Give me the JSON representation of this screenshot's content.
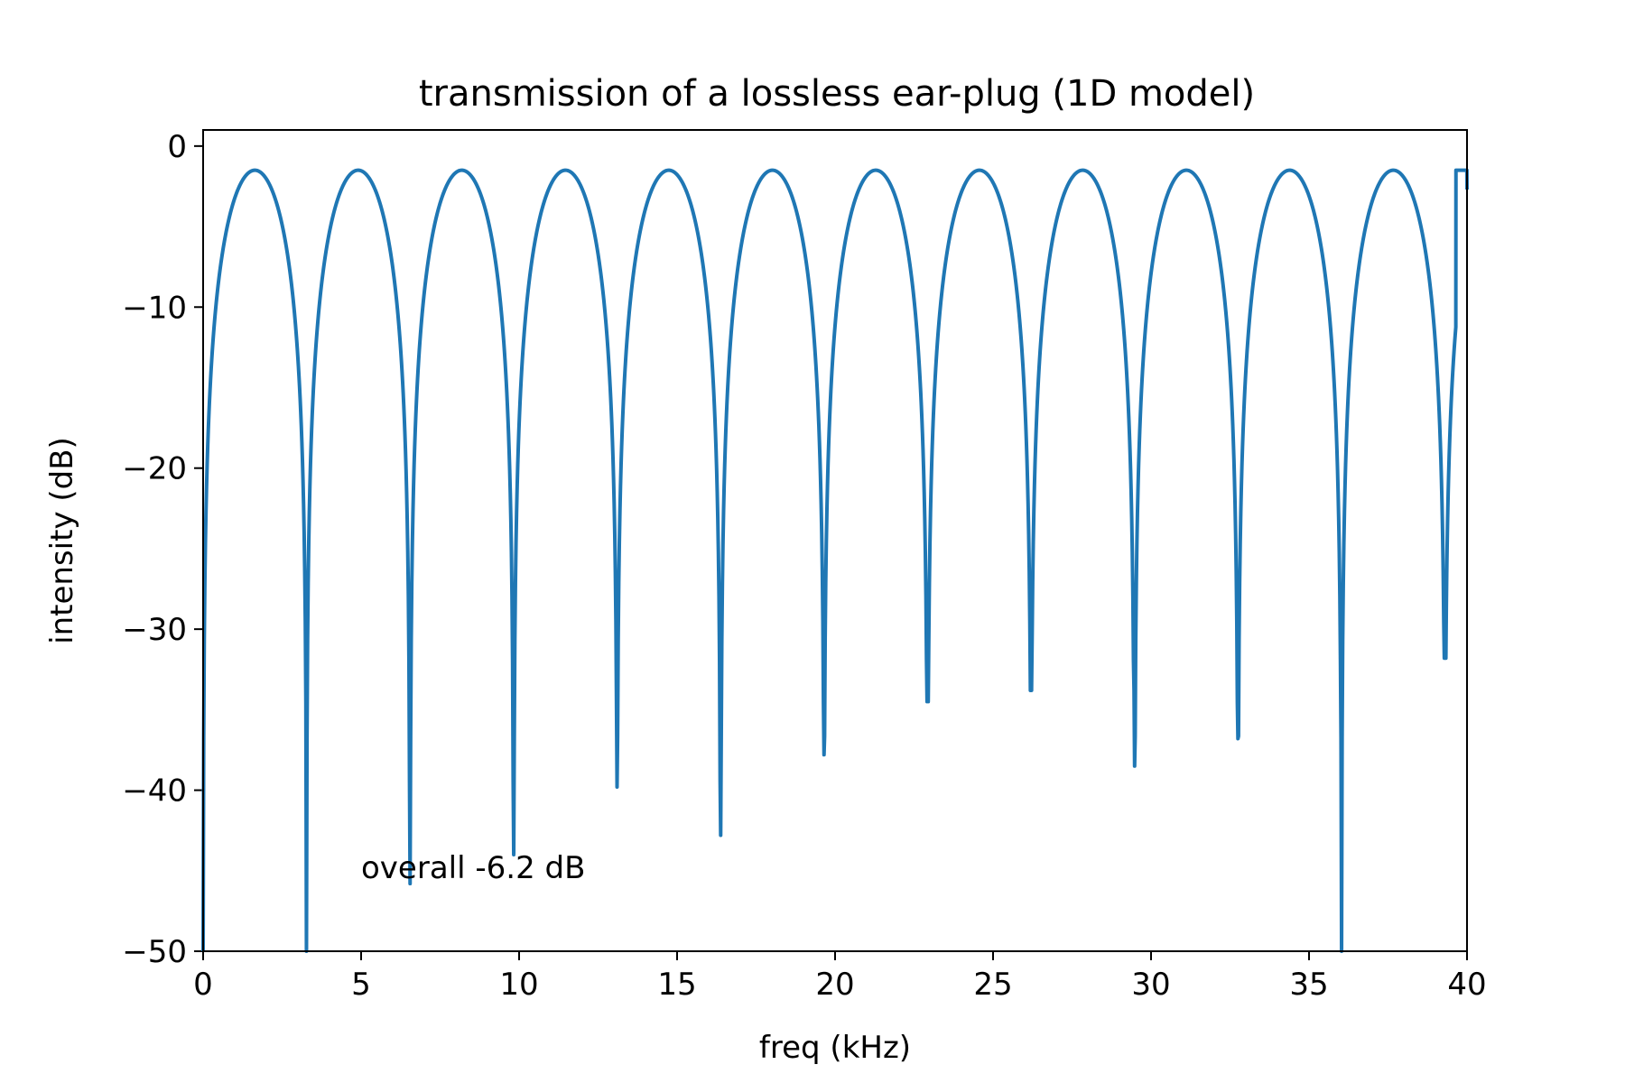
{
  "chart_data": {
    "type": "line",
    "title": "transmission of a lossless ear-plug (1D model)",
    "xlabel": "freq (kHz)",
    "ylabel": "intensity (dB)",
    "xlim": [
      0,
      40
    ],
    "ylim": [
      -50,
      1
    ],
    "xticks": [
      0,
      5,
      10,
      15,
      20,
      25,
      30,
      35,
      40
    ],
    "xtick_labels": [
      "0",
      "5",
      "10",
      "15",
      "20",
      "25",
      "30",
      "35",
      "40"
    ],
    "yticks": [
      0,
      -10,
      -20,
      -30,
      -40,
      -50
    ],
    "ytick_labels": [
      "0",
      "−10",
      "−20",
      "−30",
      "−40",
      "−50"
    ],
    "grid": false,
    "annotation": {
      "text": "overall -6.2 dB",
      "x": 5.0,
      "y": -44.8
    },
    "series": [
      {
        "color": "#1f77b4",
        "peak_db": -1.5,
        "period_khz": 6.55,
        "peaks_khz": [
          1.64,
          8.19,
          14.74,
          21.29,
          27.84,
          34.39
        ],
        "nulls": [
          {
            "x": 0.0,
            "y": -50
          },
          {
            "x": 3.27,
            "y": -50
          },
          {
            "x": 6.55,
            "y": -45.8
          },
          {
            "x": 9.83,
            "y": -44.0
          },
          {
            "x": 13.1,
            "y": -39.8
          },
          {
            "x": 16.38,
            "y": -42.8
          },
          {
            "x": 19.65,
            "y": -37.8
          },
          {
            "x": 22.93,
            "y": -34.5
          },
          {
            "x": 26.2,
            "y": -33.8
          },
          {
            "x": 29.48,
            "y": -38.5
          },
          {
            "x": 32.75,
            "y": -36.8
          },
          {
            "x": 36.03,
            "y": -50
          },
          {
            "x": 39.3,
            "y": -31.8
          }
        ],
        "end_value": {
          "x": 40.0,
          "y": -2.7
        }
      }
    ]
  }
}
